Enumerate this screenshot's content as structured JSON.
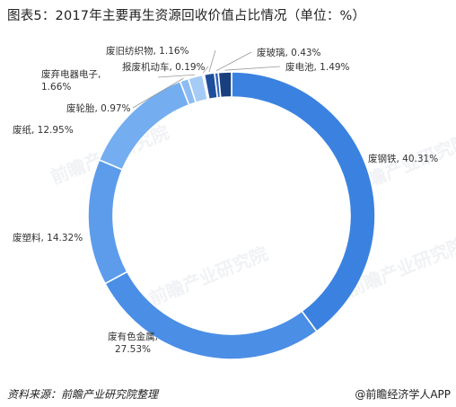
{
  "title": "图表5：2017年主要再生资源回收价值占比情况（单位：%）",
  "footer": {
    "source": "资料来源：前瞻产业研究院整理",
    "brand": "@前瞻经济学人APP"
  },
  "watermark": "前瞻产业研究院",
  "chart_data": {
    "type": "pie",
    "donut": true,
    "title": "图表5：2017年主要再生资源回收价值占比情况（单位：%）",
    "unit": "%",
    "slices": [
      {
        "name": "废钢铁",
        "value": 40.31,
        "label": "废钢铁, 40.31%",
        "color": "#3b82e0"
      },
      {
        "name": "废有色金属",
        "value": 27.53,
        "label": "废有色金属, 27.53%",
        "color": "#4a8ee6"
      },
      {
        "name": "废塑料",
        "value": 14.32,
        "label": "废塑料, 14.32%",
        "color": "#5c9ceb"
      },
      {
        "name": "废纸",
        "value": 12.95,
        "label": "废纸, 12.95%",
        "color": "#74aef0"
      },
      {
        "name": "废轮胎",
        "value": 0.97,
        "label": "废轮胎, 0.97%",
        "color": "#8cbcf3"
      },
      {
        "name": "废弃电器电子",
        "value": 1.66,
        "label": "废弃电器电子, 1.66%",
        "color": "#a6cbf6"
      },
      {
        "name": "报废机动车",
        "value": 0.19,
        "label": "报废机动车, 0.19%",
        "color": "#c6ddf9"
      },
      {
        "name": "废旧纺织物",
        "value": 1.16,
        "label": "废旧纺织物, 1.16%",
        "color": "#1f4e9a"
      },
      {
        "name": "废玻璃",
        "value": 0.43,
        "label": "废玻璃, 0.43%",
        "color": "#2f66bd"
      },
      {
        "name": "废电池",
        "value": 1.49,
        "label": "废电池, 1.49%",
        "color": "#1a3f7e"
      }
    ]
  }
}
